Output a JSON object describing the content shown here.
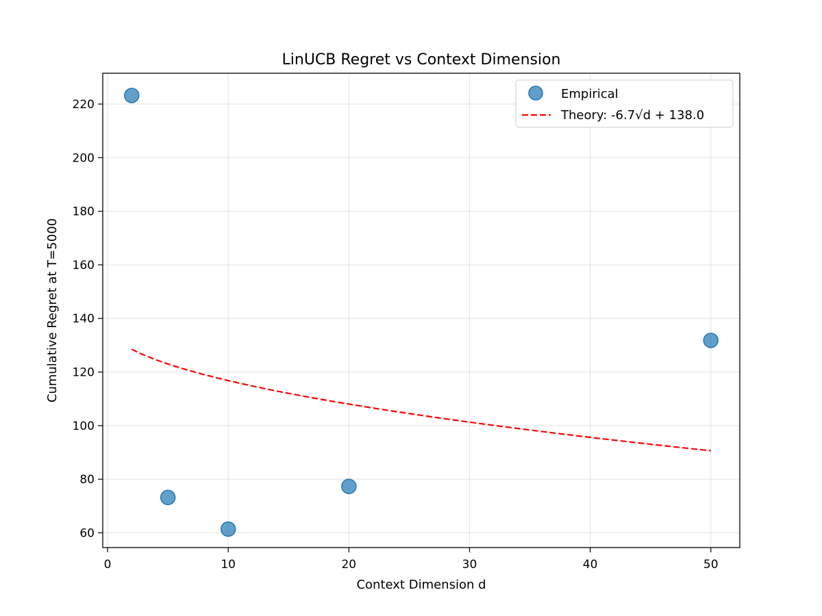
{
  "colors": {
    "empirical_face": "#1f77b4",
    "theory_line": "#ff0000",
    "grid": "#b0b0b0",
    "axis": "#000000"
  },
  "chart_data": {
    "type": "scatter",
    "title": "LinUCB Regret vs Context Dimension",
    "xlabel": "Context Dimension d",
    "ylabel": "Cumulative Regret at T=5000",
    "xlim": [
      -0.4,
      52.4
    ],
    "ylim": [
      54.5,
      231.5
    ],
    "xticks": [
      0,
      10,
      20,
      30,
      40,
      50
    ],
    "yticks": [
      60,
      80,
      100,
      120,
      140,
      160,
      180,
      200,
      220
    ],
    "grid": true,
    "legend_position": "upper right",
    "series": [
      {
        "name": "Empirical",
        "kind": "scatter",
        "color": "#1f77b4",
        "x": [
          2,
          5,
          10,
          20,
          50
        ],
        "y": [
          223.2,
          73.2,
          61.4,
          77.3,
          131.8
        ]
      },
      {
        "name": "Theory: -6.7√d + 138.0",
        "kind": "line",
        "style": "dashed",
        "color": "#ff0000",
        "formula": {
          "a": -6.7,
          "b": 138.0
        },
        "x": [
          2,
          5,
          10,
          20,
          50
        ],
        "y": [
          128.5,
          123.0,
          116.8,
          108.0,
          90.6
        ]
      }
    ]
  }
}
